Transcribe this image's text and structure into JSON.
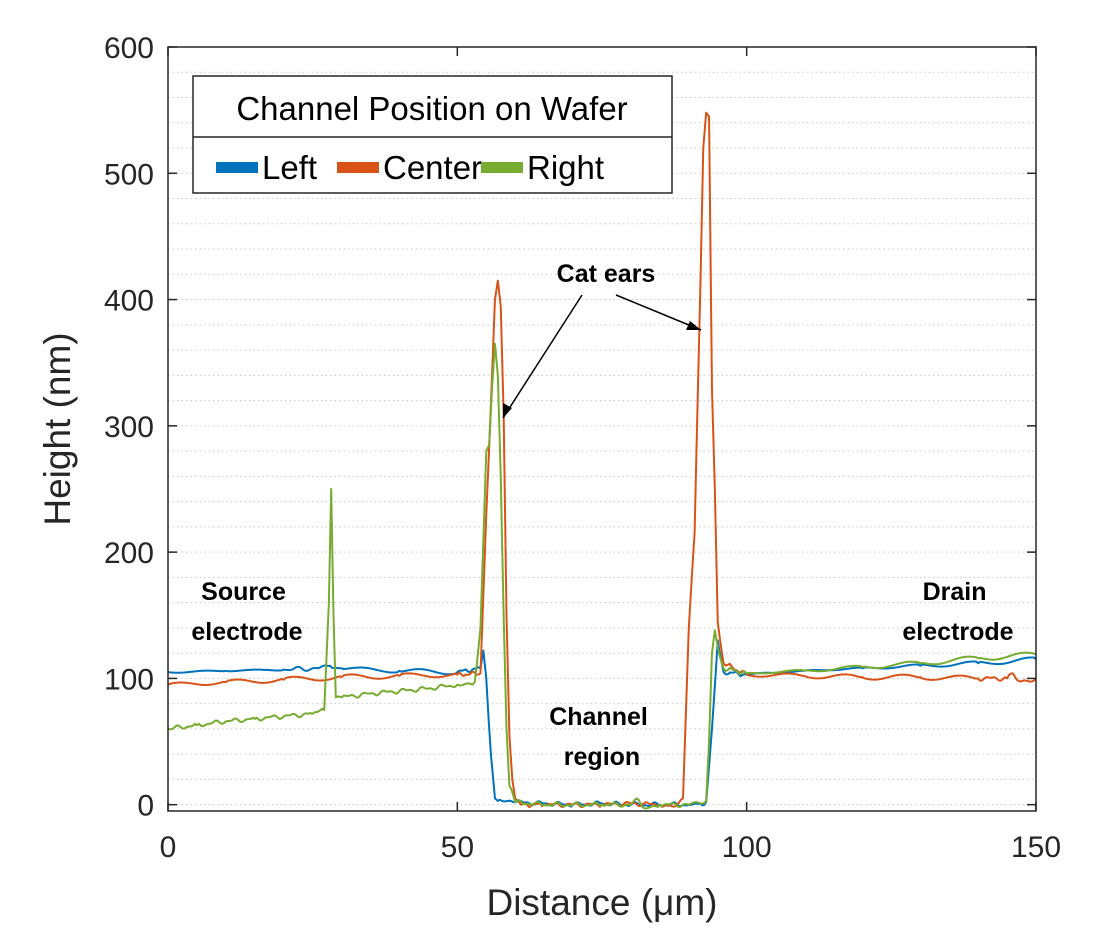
{
  "chart_data": {
    "type": "line",
    "xlabel": "Distance (μm)",
    "ylabel": "Height (nm)",
    "xlim": [
      0,
      150
    ],
    "ylim": [
      -5,
      600
    ],
    "xticks": [
      0,
      50,
      100,
      150
    ],
    "yticks": [
      0,
      100,
      200,
      300,
      400,
      500,
      600
    ],
    "grid": "dotted horizontal",
    "legend": {
      "title": "Channel Position on Wafer",
      "placement": "top-left",
      "orientation": "horizontal"
    },
    "series": [
      {
        "name": "Left",
        "color": "#0072BD",
        "x": [
          0,
          10,
          20,
          26,
          28,
          30,
          40,
          50,
          54,
          54.5,
          55,
          55.8,
          56.5,
          57,
          60,
          65,
          70,
          75,
          80,
          85,
          90,
          92,
          93,
          94,
          95,
          96,
          100,
          110,
          120,
          130,
          140,
          150
        ],
        "y": [
          105,
          106,
          107,
          108,
          110,
          108,
          106,
          105,
          108,
          122,
          100,
          40,
          5,
          3,
          2,
          1,
          0,
          1,
          0,
          0,
          0,
          1,
          2,
          60,
          130,
          105,
          103,
          106,
          108,
          110,
          112,
          115
        ]
      },
      {
        "name": "Center",
        "color": "#D95319",
        "x": [
          0,
          10,
          20,
          30,
          40,
          50,
          54,
          55,
          56,
          56.5,
          57,
          57.5,
          58,
          58.5,
          59,
          59.5,
          60,
          61,
          65,
          70,
          75,
          80,
          85,
          88,
          89,
          90,
          91,
          92,
          92.5,
          93,
          93.5,
          94,
          94.5,
          95,
          96,
          100,
          110,
          120,
          130,
          140,
          145,
          146,
          147,
          150
        ],
        "y": [
          95,
          97,
          99,
          101,
          102,
          103,
          104,
          230,
          340,
          400,
          415,
          395,
          310,
          150,
          55,
          20,
          5,
          0,
          0,
          0,
          0,
          1,
          0,
          0,
          5,
          140,
          215,
          410,
          520,
          548,
          545,
          330,
          250,
          145,
          112,
          103,
          102,
          101,
          101,
          100,
          100,
          104,
          98,
          100
        ]
      },
      {
        "name": "Right",
        "color": "#77AC30",
        "x": [
          0,
          5,
          10,
          15,
          20,
          25,
          27,
          27.8,
          28.2,
          28.6,
          29,
          30,
          35,
          40,
          45,
          50,
          53,
          54,
          55,
          55.5,
          56,
          56.5,
          57,
          57.5,
          58,
          58.5,
          59,
          60,
          65,
          70,
          75,
          80,
          81,
          82,
          85,
          90,
          92,
          93,
          93.5,
          94,
          94.5,
          95,
          96,
          100,
          110,
          120,
          130,
          140,
          150
        ],
        "y": [
          60,
          63,
          66,
          68,
          70,
          72,
          75,
          160,
          250,
          150,
          85,
          85,
          88,
          90,
          92,
          95,
          97,
          140,
          280,
          285,
          330,
          365,
          340,
          260,
          150,
          60,
          15,
          2,
          0,
          0,
          0,
          0,
          5,
          -2,
          0,
          0,
          1,
          3,
          50,
          120,
          138,
          125,
          108,
          104,
          106,
          109,
          112,
          116,
          119
        ]
      }
    ],
    "annotations": [
      {
        "text": "Source\nelectrode"
      },
      {
        "text": "Cat ears"
      },
      {
        "text": "Channel\nregion"
      },
      {
        "text": "Drain\nelectrode"
      }
    ]
  }
}
